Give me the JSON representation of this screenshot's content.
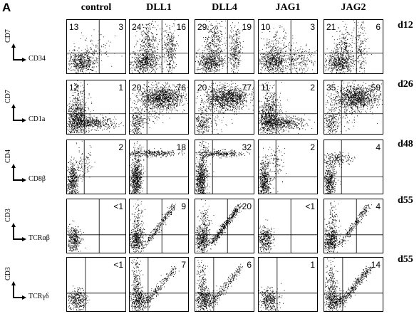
{
  "panel_label": "A",
  "columns": [
    "control",
    "DLL1",
    "DLL4",
    "JAG1",
    "JAG2"
  ],
  "rows": [
    {
      "day": "d12",
      "y_axis": "CD7",
      "x_axis": "CD34",
      "cells": [
        {
          "ul": "13",
          "ur": "3"
        },
        {
          "ul": "24",
          "ur": "16"
        },
        {
          "ul": "29",
          "ur": "19"
        },
        {
          "ul": "10",
          "ur": "3"
        },
        {
          "ul": "21",
          "ur": "6"
        }
      ]
    },
    {
      "day": "d26",
      "y_axis": "CD7",
      "x_axis": "CD1a",
      "cells": [
        {
          "ul": "12",
          "ur": "1"
        },
        {
          "ul": "20",
          "ur": "76"
        },
        {
          "ul": "20",
          "ur": "77"
        },
        {
          "ul": "11",
          "ur": "2"
        },
        {
          "ul": "35",
          "ur": "59"
        }
      ]
    },
    {
      "day": "d48",
      "y_axis": "CD4",
      "x_axis": "CD8β",
      "cells": [
        {
          "ul": "",
          "ur": "2"
        },
        {
          "ul": "",
          "ur": "18"
        },
        {
          "ul": "",
          "ur": "32"
        },
        {
          "ul": "",
          "ur": "2"
        },
        {
          "ul": "",
          "ur": "4"
        }
      ]
    },
    {
      "day": "d55",
      "y_axis": "CD3",
      "x_axis": "TCRαβ",
      "cells": [
        {
          "ul": "",
          "ur": "<1"
        },
        {
          "ul": "",
          "ur": "9"
        },
        {
          "ul": "",
          "ur": "20"
        },
        {
          "ul": "",
          "ur": "<1"
        },
        {
          "ul": "",
          "ur": "4"
        }
      ]
    },
    {
      "day": "d55",
      "y_axis": "CD3",
      "x_axis": "TCRγδ",
      "cells": [
        {
          "ul": "",
          "ur": "<1"
        },
        {
          "ul": "",
          "ur": "7"
        },
        {
          "ul": "",
          "ur": "6"
        },
        {
          "ul": "",
          "ur": "1"
        },
        {
          "ul": "",
          "ur": "14"
        }
      ]
    }
  ]
}
